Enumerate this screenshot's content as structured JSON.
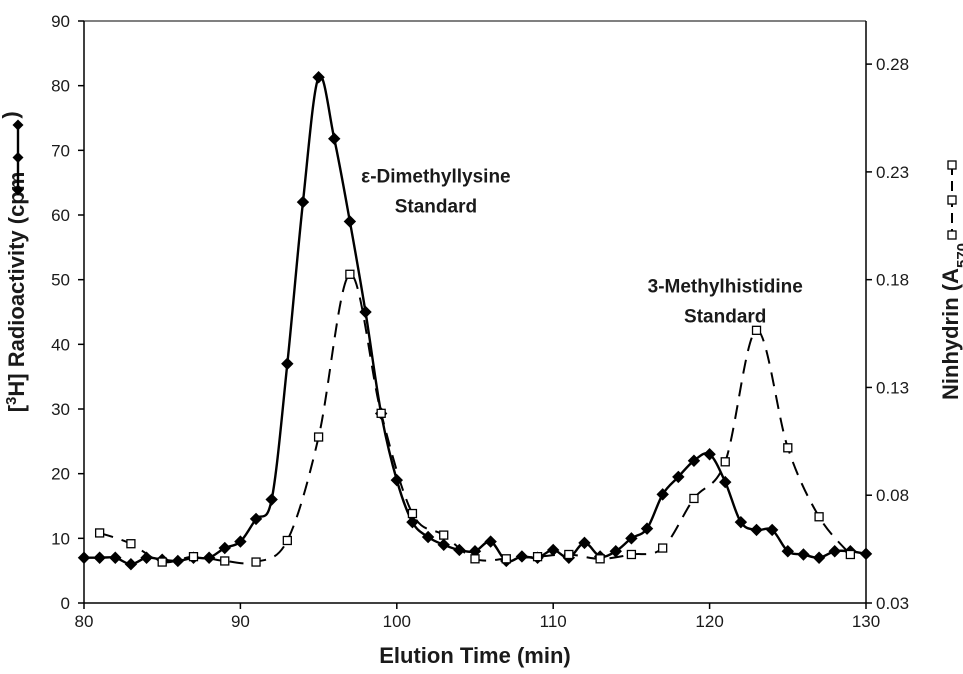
{
  "chart_data": {
    "type": "line",
    "xlabel": "Elution Time (min)",
    "ylabel_left": {
      "prefix": "[",
      "superscript": "3",
      "main": "H] Radioactivity (cpm"
    },
    "ylabel_right": {
      "main": "Ninhydrin (A",
      "subscript": "570"
    },
    "xlim": [
      80,
      130
    ],
    "ylim_left": [
      0,
      90
    ],
    "ylim_right": [
      0.03,
      0.3
    ],
    "x_ticks": [
      80,
      90,
      100,
      110,
      120,
      130
    ],
    "y_ticks_left": [
      0,
      10,
      20,
      30,
      40,
      50,
      60,
      70,
      80,
      90
    ],
    "y_ticks_right": [
      "0.03",
      "0.08",
      "0.13",
      "0.18",
      "0.23",
      "0.28"
    ],
    "grid": false,
    "annotations": [
      {
        "lines": [
          "ε-Dimethyllysine",
          "Standard"
        ],
        "x": 102.5,
        "y_left": 65
      },
      {
        "lines": [
          "3-Methylhistidine",
          "Standard"
        ],
        "x": 121,
        "y_left": 48
      }
    ],
    "series": [
      {
        "axis": "left",
        "marker": "filled-diamond",
        "line": "solid",
        "points": [
          [
            80,
            7
          ],
          [
            81,
            7
          ],
          [
            82,
            7
          ],
          [
            83,
            6
          ],
          [
            84,
            7
          ],
          [
            85,
            6.7
          ],
          [
            86,
            6.5
          ],
          [
            87,
            7
          ],
          [
            88,
            7
          ],
          [
            89,
            8.5
          ],
          [
            90,
            9.5
          ],
          [
            91,
            13
          ],
          [
            92,
            16
          ],
          [
            93,
            37
          ],
          [
            94,
            62
          ],
          [
            95,
            81.3
          ],
          [
            96,
            71.8
          ],
          [
            97,
            59
          ],
          [
            98,
            45
          ],
          [
            99,
            29.3
          ],
          [
            100,
            19
          ],
          [
            101,
            12.5
          ],
          [
            102,
            10.2
          ],
          [
            103,
            9
          ],
          [
            104,
            8.2
          ],
          [
            105,
            8
          ],
          [
            106,
            9.5
          ],
          [
            107,
            6.5
          ],
          [
            108,
            7.2
          ],
          [
            109,
            7
          ],
          [
            110,
            8.2
          ],
          [
            111,
            7
          ],
          [
            112,
            9.3
          ],
          [
            113,
            7.2
          ],
          [
            114,
            8
          ],
          [
            115,
            10
          ],
          [
            116,
            11.5
          ],
          [
            117,
            16.8
          ],
          [
            118,
            19.5
          ],
          [
            119,
            22
          ],
          [
            120,
            23
          ],
          [
            121,
            18.7
          ],
          [
            122,
            12.5
          ],
          [
            123,
            11.3
          ],
          [
            124,
            11.3
          ],
          [
            125,
            8
          ],
          [
            126,
            7.5
          ],
          [
            127,
            7
          ],
          [
            128,
            8
          ],
          [
            129,
            8
          ],
          [
            130,
            7.6
          ]
        ]
      },
      {
        "axis": "right",
        "marker": "open-square",
        "line": "dashed",
        "points": [
          [
            81,
            0.0625
          ],
          [
            83,
            0.0575
          ],
          [
            85,
            0.049
          ],
          [
            87,
            0.0515
          ],
          [
            89,
            0.0495
          ],
          [
            91,
            0.049
          ],
          [
            93,
            0.059
          ],
          [
            95,
            0.107
          ],
          [
            97,
            0.1825
          ],
          [
            99,
            0.118
          ],
          [
            101,
            0.0715
          ],
          [
            103,
            0.0615
          ],
          [
            105,
            0.0505
          ],
          [
            107,
            0.0505
          ],
          [
            109,
            0.0515
          ],
          [
            111,
            0.0525
          ],
          [
            113,
            0.0505
          ],
          [
            115,
            0.0525
          ],
          [
            117,
            0.0555
          ],
          [
            119,
            0.0785
          ],
          [
            121,
            0.0955
          ],
          [
            123,
            0.1565
          ],
          [
            125,
            0.102
          ],
          [
            127,
            0.07
          ],
          [
            129,
            0.0525
          ]
        ]
      }
    ]
  }
}
